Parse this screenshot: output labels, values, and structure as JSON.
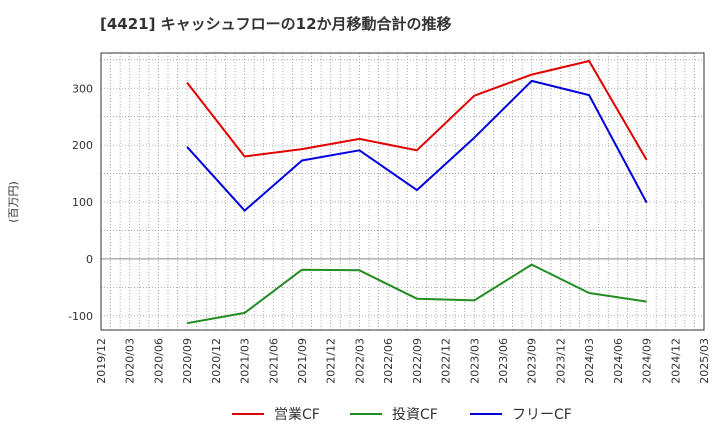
{
  "chart_data": {
    "type": "line",
    "title": "[4421]  キャッシュフローの12か月移動合計の推移",
    "ylabel": "(百万円)",
    "xlabel": "",
    "ylim": [
      -125,
      362
    ],
    "yticks": [
      -100,
      0,
      100,
      200,
      300
    ],
    "x_ticks": [
      "2019/12",
      "2020/03",
      "2020/06",
      "2020/09",
      "2020/12",
      "2021/03",
      "2021/06",
      "2021/09",
      "2021/12",
      "2022/03",
      "2022/06",
      "2022/09",
      "2022/12",
      "2023/03",
      "2023/06",
      "2023/09",
      "2023/12",
      "2024/03",
      "2024/06",
      "2024/09",
      "2024/12",
      "2025/03"
    ],
    "grid": true,
    "legend_position": "bottom",
    "series": [
      {
        "name": "営業CF",
        "color": "#e00000",
        "x": [
          "2020/09",
          "2021/03",
          "2021/09",
          "2022/03",
          "2022/09",
          "2023/03",
          "2023/09",
          "2024/03",
          "2024/09"
        ],
        "values": [
          310,
          180,
          193,
          211,
          191,
          287,
          324,
          348,
          174
        ]
      },
      {
        "name": "投資CF",
        "color": "#228b22",
        "x": [
          "2020/09",
          "2021/03",
          "2021/09",
          "2022/03",
          "2022/09",
          "2023/03",
          "2023/09",
          "2024/03",
          "2024/09"
        ],
        "values": [
          -113,
          -95,
          -19,
          -20,
          -70,
          -73,
          -10,
          -60,
          -75
        ]
      },
      {
        "name": "フリーCF",
        "color": "#0000e0",
        "x": [
          "2020/09",
          "2021/03",
          "2021/09",
          "2022/03",
          "2022/09",
          "2023/03",
          "2023/09",
          "2024/03",
          "2024/09"
        ],
        "values": [
          197,
          85,
          173,
          191,
          121,
          213,
          313,
          288,
          99
        ]
      }
    ]
  }
}
